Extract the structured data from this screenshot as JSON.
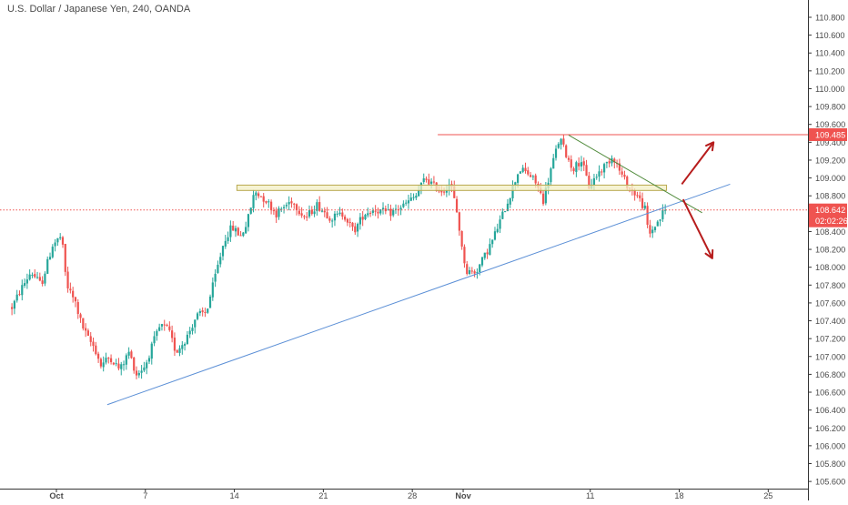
{
  "header": {
    "title": "U.S. Dollar / Japanese Yen, 240, OANDA"
  },
  "colors": {
    "up": "#26a69a",
    "down": "#ef5350",
    "resistance_line": "#ef5350",
    "support_trend": "#5b8fd6",
    "down_trend": "#4f8a3a",
    "zone_fill": "#f3efc4",
    "zone_border": "#b9a94f",
    "arrow": "#b71c1c",
    "axis_text": "#4a4a4a",
    "current_price_label": "#ef5350"
  },
  "icons": {
    "arrow_up": "trend-up-arrow",
    "arrow_down": "trend-down-arrow"
  },
  "chart_data": {
    "type": "candlestick",
    "title": "U.S. Dollar / Japanese Yen, 240, OANDA",
    "ylim": [
      105.6,
      111.0
    ],
    "y_ticks": [
      "110.800",
      "110.600",
      "110.400",
      "110.200",
      "110.000",
      "109.800",
      "109.600",
      "109.400",
      "109.200",
      "109.000",
      "108.800",
      "108.600",
      "108.400",
      "108.200",
      "108.000",
      "107.800",
      "107.600",
      "107.400",
      "107.200",
      "107.000",
      "106.800",
      "106.600",
      "106.400",
      "106.200",
      "106.000",
      "105.800",
      "105.600"
    ],
    "x_ticks": [
      {
        "label": "Oct",
        "day": 0,
        "bold": true
      },
      {
        "label": "7",
        "day": 7,
        "bold": false
      },
      {
        "label": "14",
        "day": 14,
        "bold": false
      },
      {
        "label": "21",
        "day": 21,
        "bold": false
      },
      {
        "label": "28",
        "day": 28,
        "bold": false
      },
      {
        "label": "Nov",
        "day": 32,
        "bold": true
      },
      {
        "label": "11",
        "day": 42,
        "bold": false
      },
      {
        "label": "18",
        "day": 49,
        "bold": false
      },
      {
        "label": "25",
        "day": 56,
        "bold": false
      }
    ],
    "close_anchors": [
      [
        -3.5,
        107.55
      ],
      [
        -2.8,
        107.75
      ],
      [
        -2.0,
        107.95
      ],
      [
        -1.2,
        107.8
      ],
      [
        -0.3,
        108.25
      ],
      [
        0.4,
        108.35
      ],
      [
        0.8,
        107.8
      ],
      [
        1.5,
        107.6
      ],
      [
        2.0,
        107.35
      ],
      [
        2.5,
        107.2
      ],
      [
        3.0,
        107.1
      ],
      [
        3.5,
        106.9
      ],
      [
        4.2,
        107.0
      ],
      [
        5.0,
        106.85
      ],
      [
        5.7,
        107.05
      ],
      [
        6.3,
        106.8
      ],
      [
        7.0,
        106.9
      ],
      [
        7.6,
        107.15
      ],
      [
        8.2,
        107.35
      ],
      [
        8.8,
        107.3
      ],
      [
        9.4,
        107.05
      ],
      [
        10.2,
        107.2
      ],
      [
        11.0,
        107.45
      ],
      [
        11.8,
        107.5
      ],
      [
        12.5,
        107.9
      ],
      [
        13.2,
        108.3
      ],
      [
        13.8,
        108.45
      ],
      [
        14.5,
        108.35
      ],
      [
        15.0,
        108.5
      ],
      [
        15.6,
        108.85
      ],
      [
        16.5,
        108.75
      ],
      [
        17.3,
        108.6
      ],
      [
        18.5,
        108.75
      ],
      [
        19.6,
        108.55
      ],
      [
        20.5,
        108.7
      ],
      [
        21.6,
        108.55
      ],
      [
        22.6,
        108.6
      ],
      [
        23.4,
        108.4
      ],
      [
        24.2,
        108.6
      ],
      [
        25.0,
        108.65
      ],
      [
        26.2,
        108.6
      ],
      [
        27.4,
        108.7
      ],
      [
        28.3,
        108.8
      ],
      [
        29.0,
        109.0
      ],
      [
        29.8,
        108.9
      ],
      [
        30.4,
        108.85
      ],
      [
        31.0,
        108.95
      ],
      [
        31.6,
        108.55
      ],
      [
        31.9,
        108.2
      ],
      [
        32.3,
        107.95
      ],
      [
        33.0,
        107.95
      ],
      [
        33.6,
        108.1
      ],
      [
        34.3,
        108.3
      ],
      [
        35.0,
        108.55
      ],
      [
        35.8,
        108.85
      ],
      [
        36.4,
        109.1
      ],
      [
        37.1,
        109.05
      ],
      [
        37.7,
        108.95
      ],
      [
        38.3,
        108.75
      ],
      [
        39.0,
        109.15
      ],
      [
        39.6,
        109.45
      ],
      [
        40.0,
        109.3
      ],
      [
        40.6,
        109.1
      ],
      [
        41.3,
        109.2
      ],
      [
        41.9,
        108.9
      ],
      [
        42.6,
        109.05
      ],
      [
        43.2,
        109.15
      ],
      [
        43.8,
        109.25
      ],
      [
        44.4,
        109.05
      ],
      [
        45.0,
        108.9
      ],
      [
        45.7,
        108.8
      ],
      [
        46.3,
        108.65
      ],
      [
        46.6,
        108.35
      ],
      [
        47.0,
        108.45
      ],
      [
        47.5,
        108.55
      ],
      [
        47.9,
        108.64
      ]
    ],
    "current_price": 108.642,
    "current_price_label": "108.642",
    "countdown_label": "02:02:26",
    "resistance_label": "109.485",
    "drawings": {
      "resistance_line": {
        "day_start": 30.0,
        "day_end": 60.0,
        "price": 109.485
      },
      "zone": {
        "day_start": 14.2,
        "day_end": 48.0,
        "price_low": 108.86,
        "price_high": 108.92
      },
      "support_trendline": {
        "day1": 4.0,
        "price1": 106.46,
        "day2": 53.0,
        "price2": 108.93
      },
      "down_trendline": {
        "day1": 40.3,
        "price1": 109.48,
        "day2": 50.8,
        "price2": 108.61
      },
      "arrow_up": {
        "day1": 49.2,
        "price1": 108.93,
        "day2": 51.7,
        "price2": 109.4
      },
      "arrow_down": {
        "day1": 49.3,
        "price1": 108.76,
        "day2": 51.6,
        "price2": 108.1
      }
    }
  }
}
